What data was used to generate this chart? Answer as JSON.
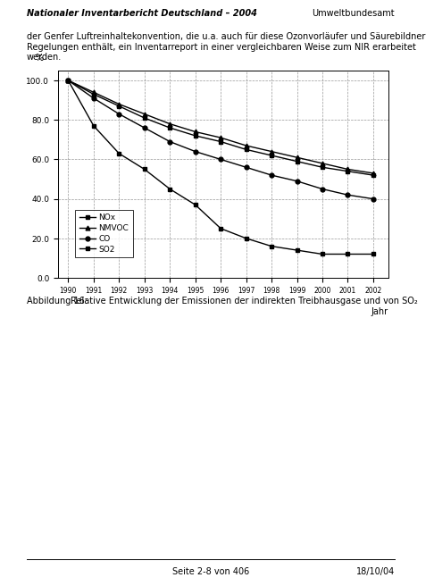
{
  "years": [
    1990,
    1991,
    1992,
    1993,
    1994,
    1995,
    1996,
    1997,
    1998,
    1999,
    2000,
    2001,
    2002
  ],
  "NOx": [
    100.0,
    93.0,
    87.0,
    81.0,
    76.0,
    72.0,
    69.0,
    65.0,
    62.0,
    59.0,
    56.0,
    54.0,
    52.0
  ],
  "NMVOC": [
    100.0,
    94.0,
    88.0,
    83.0,
    78.0,
    74.0,
    71.0,
    67.0,
    64.0,
    61.0,
    58.0,
    55.0,
    53.0
  ],
  "CO": [
    100.0,
    91.0,
    83.0,
    76.0,
    69.0,
    64.0,
    60.0,
    56.0,
    52.0,
    49.0,
    45.0,
    42.0,
    40.0
  ],
  "SO2": [
    100.0,
    77.0,
    63.0,
    55.0,
    45.0,
    37.0,
    25.0,
    20.0,
    16.0,
    14.0,
    12.0,
    12.0,
    12.0
  ],
  "ylabel": "%",
  "xlabel": "Jahr",
  "ylim": [
    0.0,
    105.0
  ],
  "yticks": [
    0.0,
    20.0,
    40.0,
    60.0,
    80.0,
    100.0
  ],
  "legend_labels": [
    "NOx",
    "NMVOC",
    "CO",
    "SO2"
  ],
  "header_left": "Nationaler Inventarbericht Deutschland – 2004",
  "header_right": "Umweltbundesamt",
  "caption_label": "Abbildung 16:",
  "caption_text": "Relative Entwicklung der Emissionen der indirekten Treibhausgase und von SO₂",
  "footer_left": "Seite 2-8 von 406",
  "footer_right": "18/10/04",
  "body_text_line1": "der Genfer Luftreinhaltekonvention, die u.a. auch für diese Ozonvorläufer und Säurebildner",
  "body_text_line2": "Regelungen enthält, ein Inventarreport in einer vergleichbaren Weise zum NIR erarbeitet",
  "body_text_line3": "werden.",
  "bg_color": "#ffffff",
  "grid_color": "#aaaaaa",
  "markers": [
    "s",
    "^",
    "o",
    "s"
  ],
  "series_keys": [
    "NOx",
    "NMVOC",
    "CO",
    "SO2"
  ]
}
